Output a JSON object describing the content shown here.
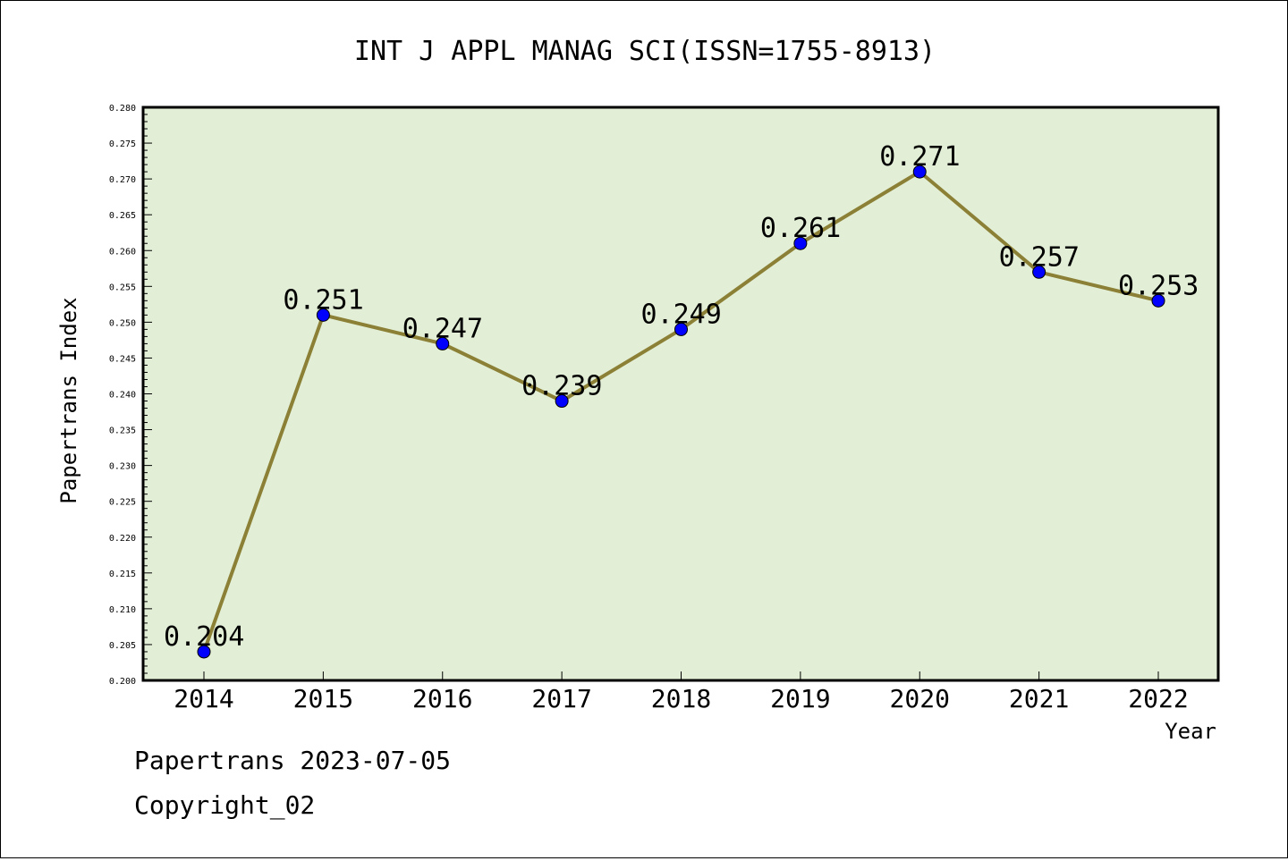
{
  "chart_data": {
    "type": "line",
    "title": "INT J APPL MANAG SCI(ISSN=1755-8913)",
    "xlabel": "Year",
    "ylabel": "Papertrans Index",
    "categories": [
      "2014",
      "2015",
      "2016",
      "2017",
      "2018",
      "2019",
      "2020",
      "2021",
      "2022"
    ],
    "values": [
      0.204,
      0.251,
      0.247,
      0.239,
      0.249,
      0.261,
      0.271,
      0.257,
      0.253
    ],
    "data_labels": [
      "0.204",
      "0.251",
      "0.247",
      "0.239",
      "0.249",
      "0.261",
      "0.271",
      "0.257",
      "0.253"
    ],
    "ylim": [
      0.2,
      0.28
    ],
    "y_ticks": [
      "0.200",
      "0.205",
      "0.210",
      "0.215",
      "0.220",
      "0.225",
      "0.230",
      "0.235",
      "0.240",
      "0.245",
      "0.250",
      "0.255",
      "0.260",
      "0.265",
      "0.270",
      "0.275",
      "0.280"
    ],
    "grid": false,
    "legend": "none",
    "colors": {
      "plot_background": "#e2efd6",
      "line": "#8b8035",
      "marker": "#0000ff"
    }
  },
  "footer": {
    "date_text": "Papertrans 2023-07-05",
    "copyright_text": "Copyright_02"
  }
}
